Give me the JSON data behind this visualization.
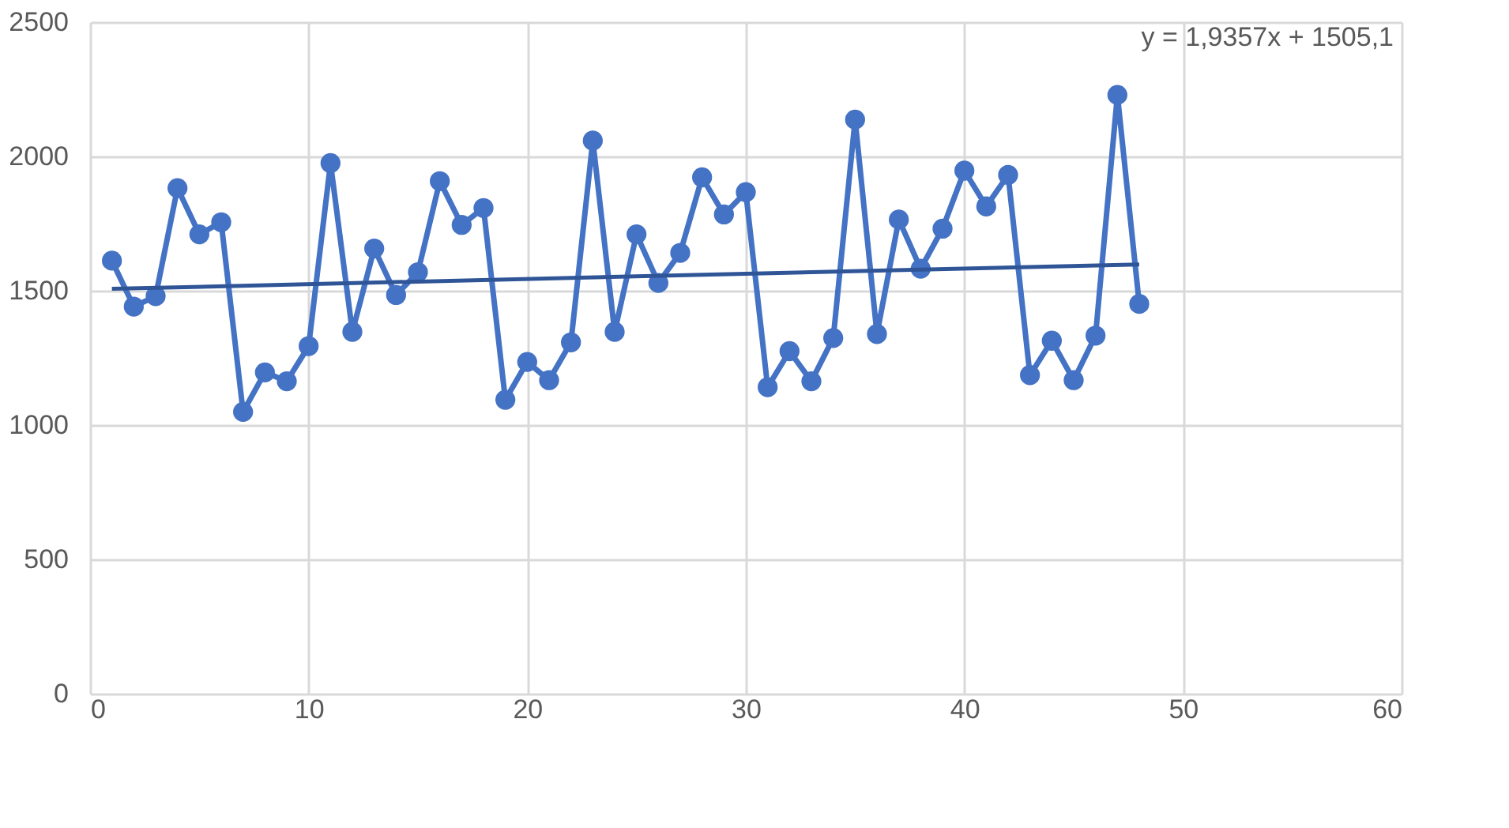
{
  "chart_data": {
    "type": "line",
    "marker": "circle",
    "grid": true,
    "xlim": [
      0,
      60
    ],
    "xticks": [
      0,
      10,
      20,
      30,
      40,
      50,
      60
    ],
    "ylim": [
      0,
      2500
    ],
    "yticks": [
      0,
      500,
      1000,
      1500,
      2000,
      2500
    ],
    "series": [
      {
        "color": "#4472c4",
        "x": [
          1,
          2,
          3,
          4,
          5,
          6,
          7,
          8,
          9,
          10,
          11,
          12,
          13,
          14,
          15,
          16,
          17,
          18,
          19,
          20,
          21,
          22,
          23,
          24,
          25,
          26,
          27,
          28,
          29,
          30,
          31,
          32,
          33,
          34,
          35,
          36,
          37,
          38,
          39,
          40,
          41,
          42,
          43,
          44,
          45,
          46,
          47,
          48
        ],
        "values": [
          1612,
          1441,
          1480,
          1882,
          1710,
          1755,
          1049,
          1196,
          1163,
          1294,
          1975,
          1347,
          1657,
          1484,
          1569,
          1908,
          1745,
          1808,
          1094,
          1235,
          1167,
          1308,
          2059,
          1347,
          1710,
          1529,
          1641,
          1922,
          1784,
          1867,
          1141,
          1275,
          1163,
          1324,
          2137,
          1339,
          1765,
          1582,
          1731,
          1947,
          1814,
          1931,
          1186,
          1314,
          1167,
          1333,
          2229,
          1451
        ]
      },
      {
        "type": "line",
        "color": "#2f5597",
        "marker": "none",
        "x": [
          1,
          48
        ],
        "values": [
          1507.0,
          1598.0
        ]
      }
    ],
    "annotations": [
      "y = 1,9357x + 1505,1"
    ]
  }
}
